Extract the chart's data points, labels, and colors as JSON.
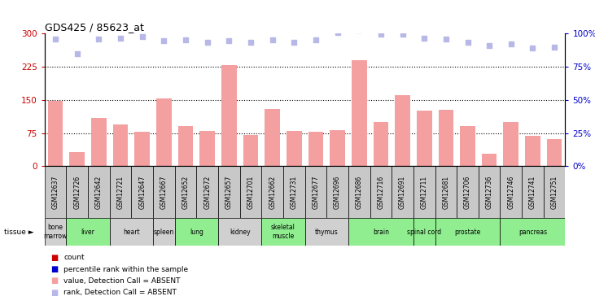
{
  "title": "GDS425 / 85623_at",
  "samples": [
    "GSM12637",
    "GSM12726",
    "GSM12642",
    "GSM12721",
    "GSM12647",
    "GSM12667",
    "GSM12652",
    "GSM12672",
    "GSM12657",
    "GSM12701",
    "GSM12662",
    "GSM12731",
    "GSM12677",
    "GSM12696",
    "GSM12686",
    "GSM12716",
    "GSM12691",
    "GSM12711",
    "GSM12681",
    "GSM12706",
    "GSM12736",
    "GSM12746",
    "GSM12741",
    "GSM12751"
  ],
  "bar_values": [
    148,
    32,
    110,
    95,
    78,
    153,
    90,
    80,
    228,
    70,
    130,
    80,
    78,
    82,
    240,
    100,
    160,
    125,
    128,
    90,
    28,
    100,
    68,
    62
  ],
  "rank_values": [
    287,
    255,
    287,
    290,
    293,
    284,
    285,
    280,
    283,
    280,
    285,
    280,
    285,
    302,
    308,
    298,
    298,
    290,
    288,
    280,
    272,
    276,
    268,
    270
  ],
  "tissues": [
    {
      "name": "bone\nmarrow",
      "start": 0,
      "end": 1,
      "color": "#d0d0d0"
    },
    {
      "name": "liver",
      "start": 1,
      "end": 3,
      "color": "#90ee90"
    },
    {
      "name": "heart",
      "start": 3,
      "end": 5,
      "color": "#d0d0d0"
    },
    {
      "name": "spleen",
      "start": 5,
      "end": 6,
      "color": "#d0d0d0"
    },
    {
      "name": "lung",
      "start": 6,
      "end": 8,
      "color": "#90ee90"
    },
    {
      "name": "kidney",
      "start": 8,
      "end": 10,
      "color": "#d0d0d0"
    },
    {
      "name": "skeletal\nmuscle",
      "start": 10,
      "end": 12,
      "color": "#90ee90"
    },
    {
      "name": "thymus",
      "start": 12,
      "end": 14,
      "color": "#d0d0d0"
    },
    {
      "name": "brain",
      "start": 14,
      "end": 17,
      "color": "#90ee90"
    },
    {
      "name": "spinal cord",
      "start": 17,
      "end": 18,
      "color": "#90ee90"
    },
    {
      "name": "prostate",
      "start": 18,
      "end": 21,
      "color": "#90ee90"
    },
    {
      "name": "pancreas",
      "start": 21,
      "end": 24,
      "color": "#90ee90"
    }
  ],
  "ylim_left": [
    0,
    300
  ],
  "ylim_right": [
    0,
    100
  ],
  "yticks_left": [
    0,
    75,
    150,
    225,
    300
  ],
  "yticks_right": [
    0,
    25,
    50,
    75,
    100
  ],
  "bar_color": "#f4a0a0",
  "rank_absent_color": "#b8b8e8",
  "left_tick_color": "#cc0000",
  "right_tick_color": "#0000cc",
  "dotted_line_color": "#000000",
  "label_box_color": "#c8c8c8",
  "fig_width": 7.31,
  "fig_height": 3.75,
  "dpi": 100
}
